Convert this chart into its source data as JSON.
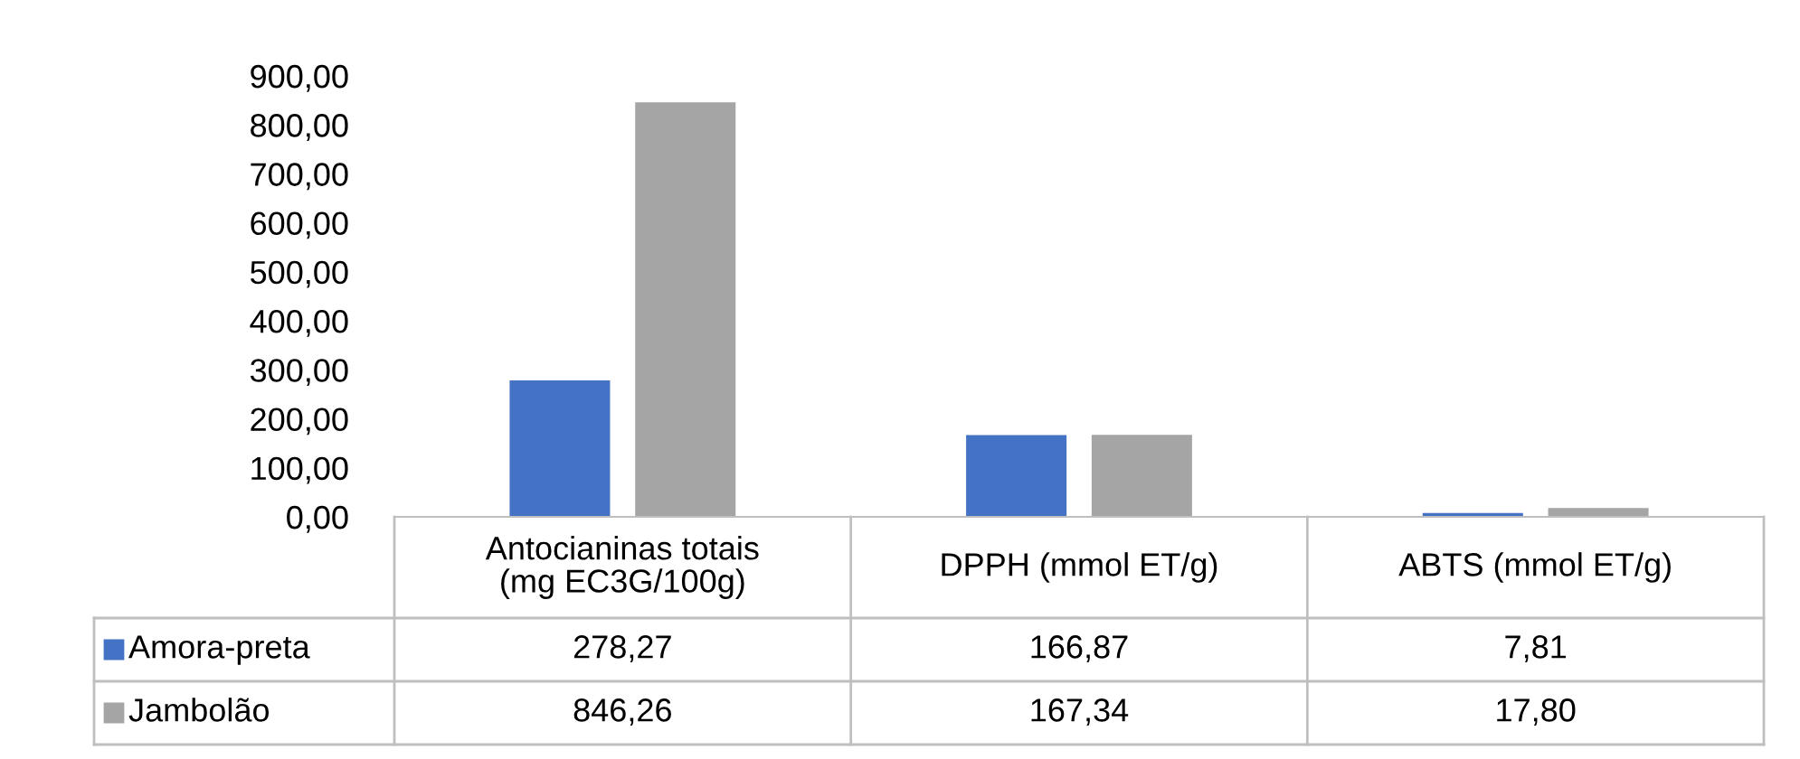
{
  "chart_data": {
    "type": "bar",
    "categories": [
      "Antocianinas totais\n(mg EC3G/100g)",
      "DPPH (mmol ET/g)",
      "ABTS (mmol ET/g)"
    ],
    "series": [
      {
        "name": "Amora-preta",
        "color": "#4472c4",
        "values": [
          278.27,
          166.87,
          7.81
        ],
        "value_labels": [
          "278,27",
          "166,87",
          "7,81"
        ]
      },
      {
        "name": "Jambolão",
        "color": "#a5a5a5",
        "values": [
          846.26,
          167.34,
          17.8
        ],
        "value_labels": [
          "846,26",
          "167,34",
          "17,80"
        ]
      }
    ],
    "ylim": [
      0,
      900
    ],
    "yticks": [
      {
        "value": 0,
        "label": "0,00"
      },
      {
        "value": 100,
        "label": "100,00"
      },
      {
        "value": 200,
        "label": "200,00"
      },
      {
        "value": 300,
        "label": "300,00"
      },
      {
        "value": 400,
        "label": "400,00"
      },
      {
        "value": 500,
        "label": "500,00"
      },
      {
        "value": 600,
        "label": "600,00"
      },
      {
        "value": 700,
        "label": "700,00"
      },
      {
        "value": 800,
        "label": "800,00"
      },
      {
        "value": 900,
        "label": "900,00"
      }
    ],
    "grid": false,
    "legend": "bottom left"
  }
}
